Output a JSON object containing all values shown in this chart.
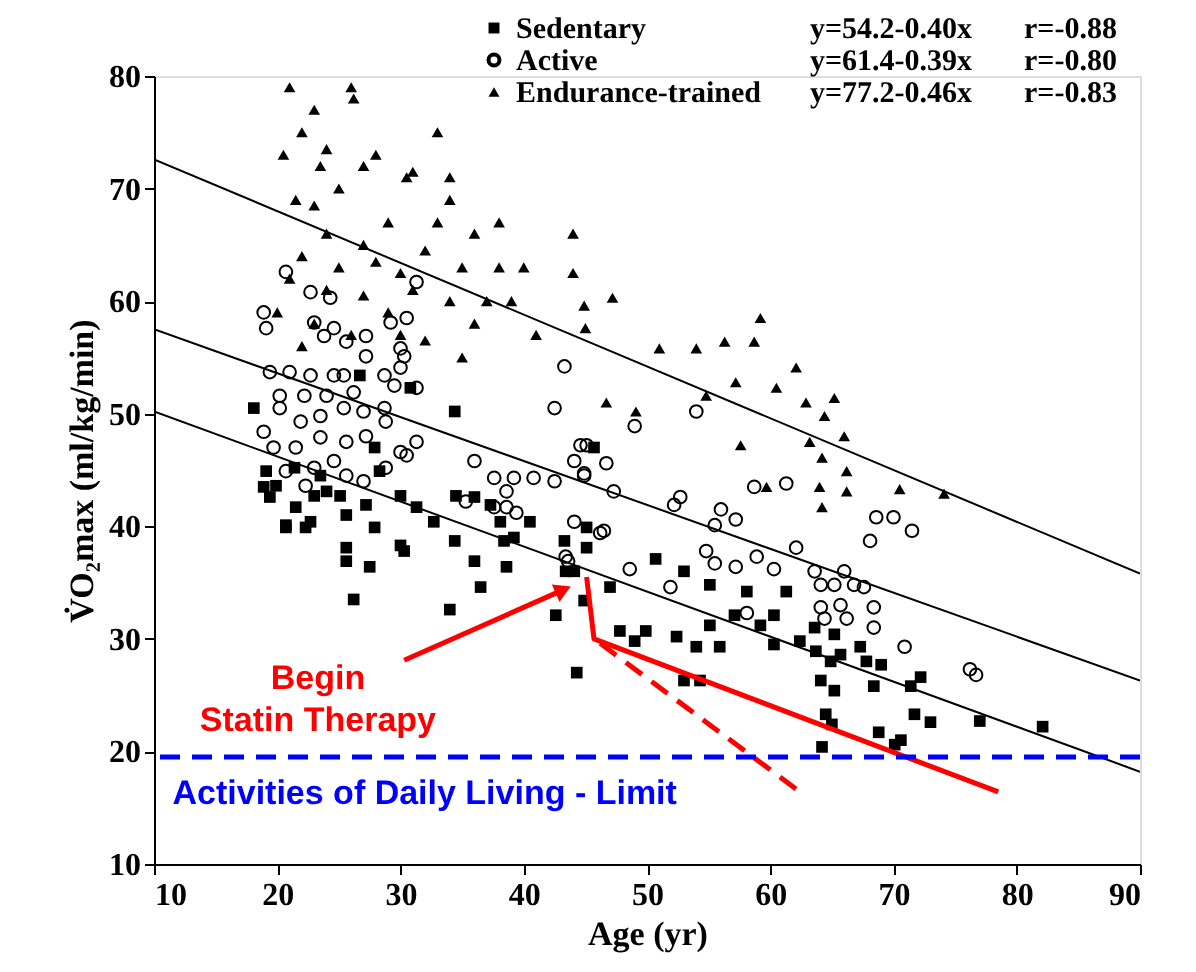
{
  "chart_data": {
    "type": "scatter",
    "xlabel": "Age (yr)",
    "ylabel": "V̇O₂max (ml/kg/min)",
    "xlim": [
      10,
      90
    ],
    "ylim": [
      10,
      80
    ],
    "xticks": [
      10,
      20,
      30,
      40,
      50,
      60,
      70,
      80,
      90
    ],
    "yticks": [
      10,
      20,
      30,
      40,
      50,
      60,
      70,
      80
    ],
    "grid": false,
    "legend": "top right",
    "annotations": [
      "y=54.2-0.40x",
      "r=-0.88",
      "y=61.4-0.39x",
      "r=-0.80",
      "y=77.2-0.46x",
      "r=-0.83",
      {
        "text": "Begin\nStatin Therapy",
        "x": 43.8,
        "y": 34.6
      }
    ],
    "ref_lines": [
      {
        "axis": "y",
        "value": 19.5,
        "label": "Activities of Daily Living - Limit",
        "color": "#0000ff",
        "line_style": "dashed"
      }
    ],
    "series": [
      {
        "name": "Sedentary",
        "marker": "square",
        "color": "#000000",
        "x": [
          18.1,
          19.1,
          18.9,
          19.9,
          19.4,
          21.4,
          23.5,
          23,
          24,
          25.1,
          21.5,
          22.7,
          20.7,
          25.6,
          27.2,
          27.9,
          28.3,
          30,
          31.3,
          32.7,
          26.7,
          30.8,
          34.4,
          34.5,
          36,
          37.3,
          38.1,
          39.2,
          40.5,
          43.3,
          45.1,
          45.7,
          25.6,
          30,
          34.4,
          27.9,
          20.7,
          22.3,
          25.6,
          27.5,
          30.3,
          26.2,
          36,
          36.5,
          34,
          38.6,
          38.4,
          42.6,
          44.3,
          43.4,
          44.9,
          45.1,
          44.1,
          47,
          50.7,
          53,
          55.1,
          58.1,
          61.3,
          55.1,
          57.1,
          59.2,
          60.3,
          47.8,
          49.9,
          49,
          52.4,
          54,
          55.9,
          60.3,
          62.4,
          63.6,
          65.2,
          63.7,
          64.9,
          65.7,
          67.3,
          67.8,
          69,
          64.1,
          65.2,
          68.4,
          71.4,
          72.2,
          53,
          54.3,
          64.5,
          65,
          71.7,
          73,
          77,
          82.1,
          68.8,
          70.1,
          70.6,
          64.2
        ],
        "values": [
          50.5,
          44.9,
          43.5,
          43.6,
          42.6,
          45.2,
          44.5,
          42.7,
          43.1,
          42.7,
          41.7,
          40.4,
          40.1,
          41,
          41.9,
          47,
          44.9,
          42.7,
          41.7,
          40.4,
          53.4,
          52.3,
          50.2,
          42.7,
          42.6,
          41.9,
          40.4,
          39,
          40.4,
          38.7,
          39.9,
          47,
          38.1,
          38.3,
          38.7,
          39.9,
          39.9,
          39.9,
          36.9,
          36.4,
          37.8,
          33.5,
          36.9,
          34.6,
          32.6,
          36.4,
          38.7,
          32.1,
          27,
          36,
          33.4,
          38.1,
          36,
          34.6,
          37.1,
          36,
          34.8,
          34.2,
          34.2,
          31.2,
          32.1,
          31.2,
          32.1,
          30.7,
          30.7,
          29.8,
          30.2,
          29.3,
          29.3,
          29.5,
          29.8,
          31,
          30.4,
          28.9,
          28,
          28.6,
          29.3,
          28,
          27.7,
          26.3,
          25.4,
          25.8,
          25.8,
          26.6,
          26.3,
          26.3,
          23.3,
          22.4,
          23.3,
          22.6,
          22.7,
          22.2,
          21.7,
          20.6,
          21,
          20.4
        ]
      },
      {
        "name": "Active",
        "marker": "circle",
        "color": "#000000",
        "x": [
          20.7,
          18.9,
          19.1,
          22.7,
          24.3,
          31.3,
          23,
          23.8,
          24.6,
          25.6,
          27.2,
          29.2,
          30.5,
          30,
          27.2,
          19.4,
          21,
          22.7,
          24.6,
          25.4,
          20.2,
          22.2,
          24,
          26.2,
          28.7,
          30,
          30.3,
          29.5,
          31.3,
          18.9,
          20.2,
          21.9,
          23.5,
          25.4,
          27,
          28.7,
          19.7,
          21.5,
          23.5,
          25.6,
          27.2,
          28.8,
          30,
          31.3,
          20.7,
          23,
          24.6,
          25.6,
          27,
          28.8,
          30.5,
          22.3,
          42.5,
          43.3,
          36,
          37.6,
          39.2,
          40.8,
          42.5,
          38.6,
          38.6,
          39.4,
          37.6,
          35.3,
          44.1,
          44.9,
          45.1,
          44.1,
          43.4,
          54,
          49,
          44.6,
          46.7,
          44.9,
          47.3,
          52.7,
          52.2,
          56,
          57.2,
          55.5,
          58.7,
          61.3,
          68.6,
          70,
          71.5,
          68.1,
          46.5,
          54.8,
          58.9,
          62.1,
          46.2,
          55.5,
          57.2,
          60.3,
          48.6,
          51.9,
          58.1,
          63.6,
          64.1,
          65.2,
          66,
          66.8,
          67.6,
          64.1,
          65.7,
          66.2,
          68.4,
          64.4,
          68.4,
          70.9,
          76.2,
          76.7,
          43.6
        ],
        "values": [
          62.6,
          59,
          57.6,
          60.8,
          60.3,
          61.7,
          58.1,
          56.9,
          57.6,
          56.4,
          56.9,
          58.1,
          58.5,
          55.8,
          55.1,
          53.7,
          53.7,
          53.4,
          53.4,
          53.4,
          51.6,
          51.6,
          51.6,
          51.9,
          53.4,
          54.1,
          55.1,
          52.5,
          52.3,
          48.4,
          50.5,
          49.3,
          49.8,
          50.5,
          50.2,
          50.5,
          47,
          47,
          47.9,
          47.5,
          48,
          49.3,
          46.6,
          47.5,
          44.9,
          45.2,
          45.8,
          44.5,
          44,
          45.2,
          46.3,
          43.6,
          50.5,
          54.2,
          45.8,
          44.3,
          44.3,
          44.3,
          44,
          43.1,
          41.7,
          41.2,
          41.7,
          42.2,
          45.8,
          44.5,
          47.2,
          40.4,
          37.3,
          50.2,
          48.9,
          47.2,
          45.6,
          44.7,
          43.1,
          42.6,
          41.9,
          41.5,
          40.6,
          40.1,
          43.5,
          43.8,
          40.8,
          40.8,
          39.6,
          38.7,
          39.6,
          37.8,
          37.3,
          38.1,
          39.4,
          36.7,
          36.4,
          36.2,
          36.2,
          34.6,
          32.3,
          36,
          34.8,
          34.8,
          36,
          34.8,
          34.6,
          32.8,
          33,
          31.8,
          32.8,
          31.8,
          31,
          29.3,
          27.3,
          26.8,
          36.9
        ]
      },
      {
        "name": "Endurance-trained",
        "marker": "triangle",
        "color": "#000000",
        "x": [
          21,
          23,
          26,
          26.2,
          22,
          20.5,
          24,
          28,
          23.5,
          27,
          30.5,
          31,
          34,
          25,
          21.5,
          23,
          29,
          33,
          36,
          24,
          27,
          32,
          35,
          22,
          25,
          28,
          30,
          38,
          40,
          44,
          21,
          24,
          27,
          31,
          34,
          37,
          39,
          20,
          23,
          29,
          26,
          30,
          32,
          36,
          41,
          22,
          35,
          44,
          38,
          34,
          33,
          44.9,
          47.2,
          45,
          59.2,
          51,
          54,
          56.3,
          58.7,
          62.1,
          57.2,
          54.8,
          46.7,
          49.1,
          60.5,
          62.9,
          65.2,
          64.4,
          66,
          63.2,
          57.6,
          64.2,
          66.2,
          64,
          66.2,
          64.2,
          70.5,
          74.1,
          59.7
        ],
        "values": [
          79,
          77,
          79,
          78,
          75,
          73,
          73.5,
          73,
          72,
          72,
          71,
          71.5,
          71,
          70,
          69,
          68.5,
          67,
          67,
          66,
          66,
          65,
          64.5,
          63,
          64,
          63,
          63.5,
          62.5,
          63,
          63,
          62.5,
          62,
          61,
          60.5,
          61,
          60,
          60,
          60,
          59,
          58,
          59,
          57,
          57,
          56.5,
          58,
          57,
          56,
          55,
          66,
          67,
          69,
          75,
          59.6,
          60.3,
          57.6,
          58.5,
          55.8,
          55.8,
          56.4,
          56.4,
          54.1,
          52.8,
          51.6,
          51,
          50.2,
          52.3,
          51,
          51.4,
          49.8,
          48,
          47.5,
          47.2,
          46.1,
          44.9,
          43.5,
          43.1,
          41.7,
          43.3,
          42.9,
          43.5
        ]
      },
      {
        "type": "line",
        "color": "#000000",
        "line_style": "solid",
        "x": [
          10,
          90
        ],
        "values": [
          50.2,
          18.2
        ]
      },
      {
        "type": "line",
        "color": "#000000",
        "line_style": "solid",
        "x": [
          10,
          90
        ],
        "values": [
          57.5,
          26.3
        ]
      },
      {
        "type": "line",
        "color": "#000000",
        "line_style": "solid",
        "x": [
          10,
          90
        ],
        "values": [
          72.6,
          35.8
        ]
      },
      {
        "type": "line",
        "color": "#ff0000",
        "line_style": "solid",
        "x": [
          45.1,
          45.7,
          78.5
        ],
        "values": [
          35.5,
          30,
          16.4
        ]
      },
      {
        "type": "line",
        "color": "#ff0000",
        "line_style": "dashed",
        "x": [
          46.2,
          62.3
        ],
        "values": [
          29.6,
          16.5
        ]
      }
    ]
  }
}
